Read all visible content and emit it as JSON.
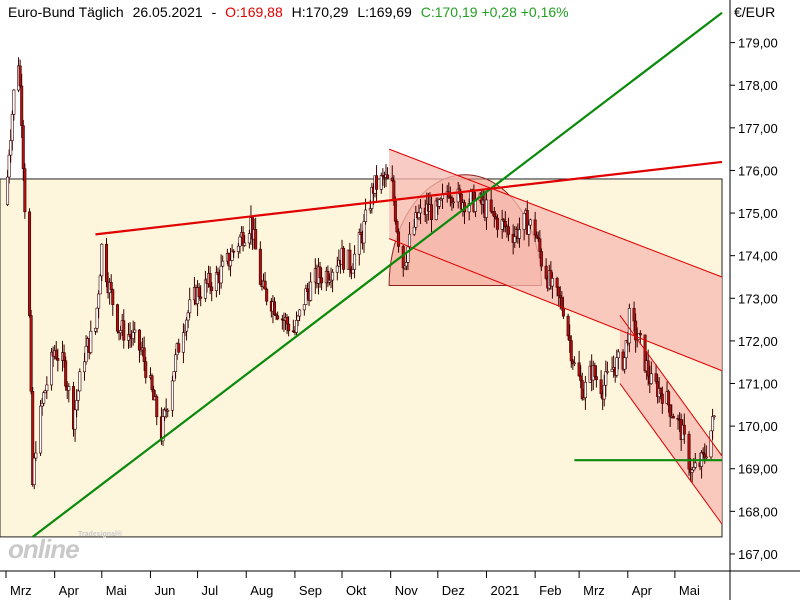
{
  "header": {
    "instrument": "Euro-Bund Täglich",
    "date": "26.05.2021",
    "open": "O:169,88",
    "high": "H:170,29",
    "low": "L:169,69",
    "close": "C:170,19 +0,28 +0,16%"
  },
  "currency": "€/EUR",
  "logo": {
    "brand": "online",
    "tag": "Tradesignal®"
  },
  "colors": {
    "up_line": "#008000",
    "resistance": "#e00000",
    "open_red": "#e00000",
    "close_green": "#008000",
    "range_box": "#fdf6dd",
    "channel_fill": "#f6b9b0"
  },
  "chart_data": {
    "type": "candlestick",
    "y_unit": "€",
    "ylim": [
      166.6,
      180.0
    ],
    "ytick_labels": [
      "167,00",
      "168,00",
      "169,00",
      "170,00",
      "171,00",
      "172,00",
      "173,00",
      "174,00",
      "175,00",
      "176,00",
      "177,00",
      "178,00",
      "179,00"
    ],
    "ytick_values": [
      167,
      168,
      169,
      170,
      171,
      172,
      173,
      174,
      175,
      176,
      177,
      178,
      179
    ],
    "x_labels": [
      "Mrz",
      "Apr",
      "Mai",
      "Jun",
      "Jul",
      "Aug",
      "Sep",
      "Okt",
      "Nov",
      "Dez",
      "2021",
      "Feb",
      "Mrz",
      "Apr",
      "Mai"
    ],
    "x_range": [
      "2020-03-01",
      "2021-05-31"
    ],
    "price_path": [
      [
        "2020-03-01",
        175.2
      ],
      [
        "2020-03-03",
        176.5
      ],
      [
        "2020-03-06",
        177.8
      ],
      [
        "2020-03-09",
        178.6
      ],
      [
        "2020-03-11",
        177.3
      ],
      [
        "2020-03-13",
        175.2
      ],
      [
        "2020-03-16",
        172.5
      ],
      [
        "2020-03-18",
        168.6
      ],
      [
        "2020-03-20",
        169.6
      ],
      [
        "2020-03-25",
        170.7
      ],
      [
        "2020-04-01",
        171.8
      ],
      [
        "2020-04-07",
        171.4
      ],
      [
        "2020-04-13",
        170.2
      ],
      [
        "2020-04-20",
        171.7
      ],
      [
        "2020-04-27",
        172.3
      ],
      [
        "2020-05-01",
        174.2
      ],
      [
        "2020-05-05",
        173.4
      ],
      [
        "2020-05-12",
        172.3
      ],
      [
        "2020-05-20",
        172.1
      ],
      [
        "2020-05-27",
        171.7
      ],
      [
        "2020-06-03",
        170.6
      ],
      [
        "2020-06-08",
        169.8
      ],
      [
        "2020-06-15",
        171.2
      ],
      [
        "2020-06-22",
        172.4
      ],
      [
        "2020-06-30",
        173.1
      ],
      [
        "2020-07-07",
        173.3
      ],
      [
        "2020-07-14",
        173.5
      ],
      [
        "2020-07-21",
        173.9
      ],
      [
        "2020-07-28",
        174.4
      ],
      [
        "2020-08-04",
        174.8
      ],
      [
        "2020-08-11",
        173.2
      ],
      [
        "2020-08-18",
        172.9
      ],
      [
        "2020-08-25",
        172.5
      ],
      [
        "2020-09-01",
        172.2
      ],
      [
        "2020-09-08",
        173.1
      ],
      [
        "2020-09-15",
        173.5
      ],
      [
        "2020-09-22",
        173.6
      ],
      [
        "2020-09-30",
        174.0
      ],
      [
        "2020-10-07",
        173.8
      ],
      [
        "2020-10-14",
        174.5
      ],
      [
        "2020-10-21",
        175.6
      ],
      [
        "2020-10-28",
        175.8
      ],
      [
        "2020-11-02",
        175.6
      ],
      [
        "2020-11-06",
        174.4
      ],
      [
        "2020-11-09",
        173.8
      ],
      [
        "2020-11-12",
        174.2
      ],
      [
        "2020-11-18",
        174.9
      ],
      [
        "2020-11-25",
        175.1
      ],
      [
        "2020-12-01",
        175.0
      ],
      [
        "2020-12-08",
        175.6
      ],
      [
        "2020-12-15",
        175.3
      ],
      [
        "2020-12-22",
        175.3
      ],
      [
        "2020-12-29",
        175.2
      ],
      [
        "2021-01-05",
        174.9
      ],
      [
        "2021-01-12",
        174.7
      ],
      [
        "2021-01-19",
        174.5
      ],
      [
        "2021-01-26",
        174.8
      ],
      [
        "2021-02-01",
        174.6
      ],
      [
        "2021-02-05",
        173.9
      ],
      [
        "2021-02-12",
        173.2
      ],
      [
        "2021-02-19",
        172.8
      ],
      [
        "2021-02-26",
        171.4
      ],
      [
        "2021-03-04",
        170.8
      ],
      [
        "2021-03-09",
        171.3
      ],
      [
        "2021-03-16",
        170.9
      ],
      [
        "2021-03-23",
        171.4
      ],
      [
        "2021-03-30",
        171.6
      ],
      [
        "2021-04-02",
        172.5
      ],
      [
        "2021-04-09",
        171.9
      ],
      [
        "2021-04-16",
        171.0
      ],
      [
        "2021-04-23",
        170.8
      ],
      [
        "2021-04-30",
        170.3
      ],
      [
        "2021-05-05",
        169.9
      ],
      [
        "2021-05-12",
        168.9
      ],
      [
        "2021-05-19",
        169.2
      ],
      [
        "2021-05-24",
        169.9
      ],
      [
        "2021-05-26",
        170.19
      ]
    ],
    "drawings": [
      {
        "kind": "rectangle",
        "from": [
          "2020-03-01",
          175.8
        ],
        "to": [
          "2021-05-31",
          167.4
        ]
      },
      {
        "kind": "uptrend-line",
        "from": [
          "2020-03-18",
          167.4
        ],
        "to": [
          "2021-05-31",
          179.7
        ]
      },
      {
        "kind": "resistance-line",
        "from": [
          "2020-04-27",
          174.5
        ],
        "to": [
          "2021-05-31",
          176.2
        ]
      },
      {
        "kind": "arc",
        "from": [
          "2020-10-31",
          173.3
        ],
        "to": [
          "2021-02-05",
          173.3
        ],
        "top": 175.9
      },
      {
        "kind": "channel",
        "upper": [
          [
            "2020-10-31",
            176.5
          ],
          [
            "2021-05-31",
            173.5
          ]
        ],
        "lower": [
          [
            "2020-10-31",
            174.4
          ],
          [
            "2021-05-31",
            171.3
          ]
        ]
      },
      {
        "kind": "channel",
        "upper": [
          [
            "2021-03-27",
            172.6
          ],
          [
            "2021-05-31",
            169.3
          ]
        ],
        "lower": [
          [
            "2021-03-27",
            171.0
          ],
          [
            "2021-05-31",
            167.7
          ]
        ]
      },
      {
        "kind": "support-line",
        "from": [
          "2021-02-26",
          169.2
        ],
        "to": [
          "2021-05-31",
          169.2
        ]
      }
    ]
  }
}
